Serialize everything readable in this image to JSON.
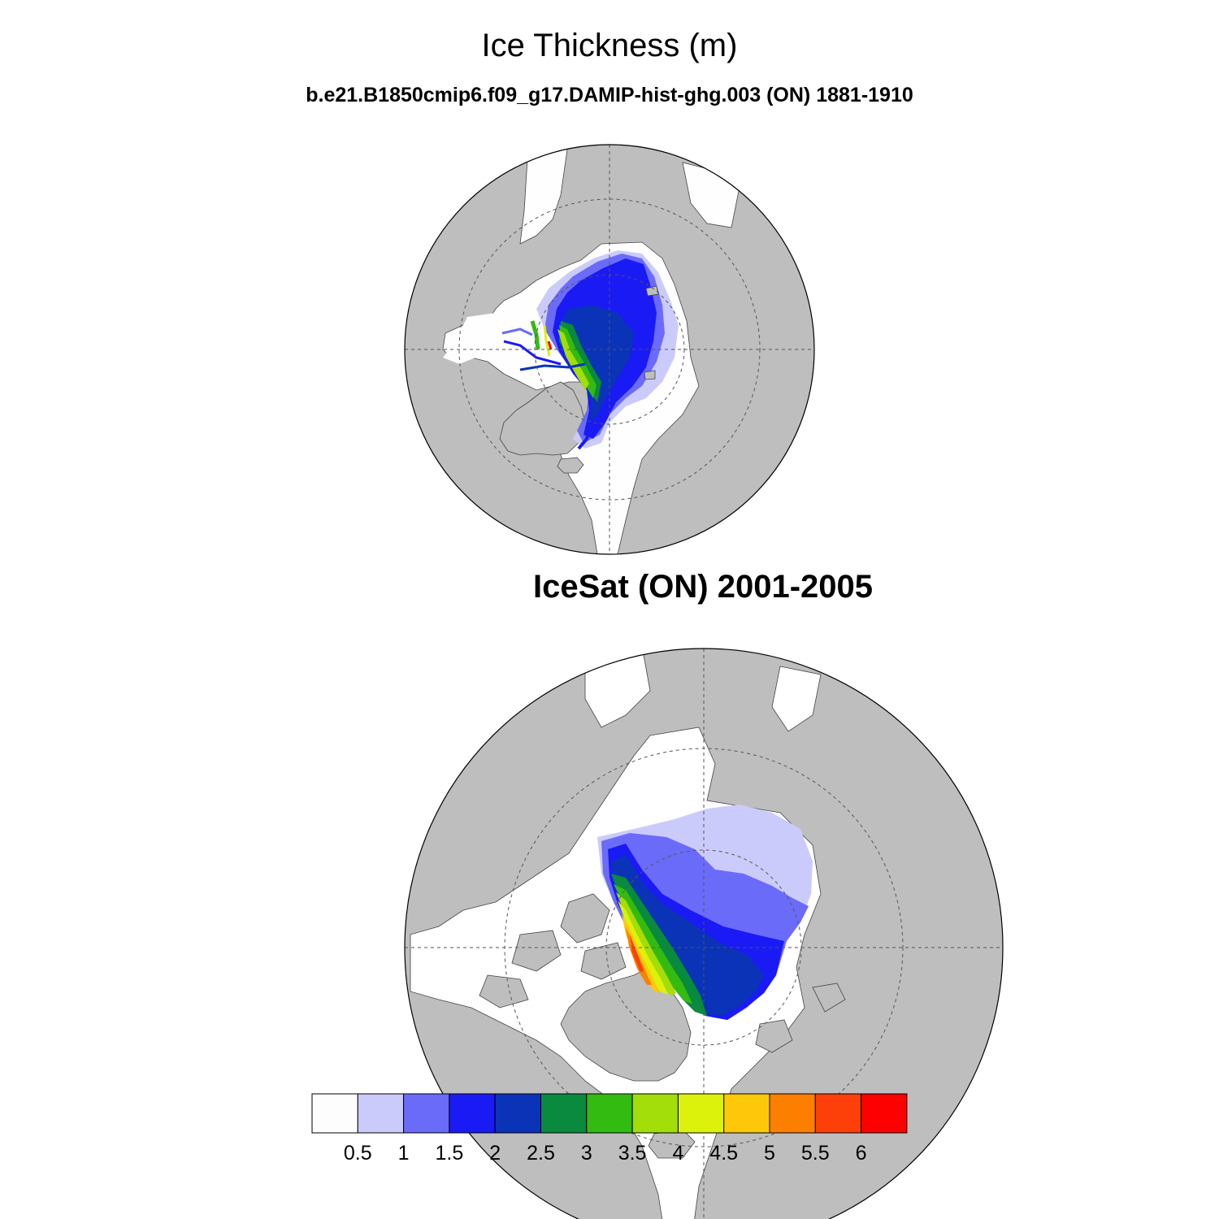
{
  "figure": {
    "title": "Ice Thickness (m)",
    "panel1_title": "b.e21.B1850cmip6.f09_g17.DAMIP-hist-ghg.003 (ON) 1881-1910",
    "panel2_title": "IceSat (ON) 2001-2005"
  },
  "colors": {
    "land": "#bebebe",
    "ocean": "#fefefe"
  },
  "colorbar": {
    "unit": "m",
    "colors": [
      "#fdfdfd",
      "#cbcbfb",
      "#6b6bfa",
      "#1a1af5",
      "#0a33b8",
      "#0a8a3e",
      "#33bb12",
      "#a3dd0a",
      "#ddf20a",
      "#fdc80a",
      "#fd7f00",
      "#fd3f0a",
      "#fd0000"
    ],
    "labels": [
      "0.5",
      "1",
      "1.5",
      "2",
      "2.5",
      "3",
      "3.5",
      "4",
      "4.5",
      "5",
      "5.5",
      "6"
    ]
  }
}
